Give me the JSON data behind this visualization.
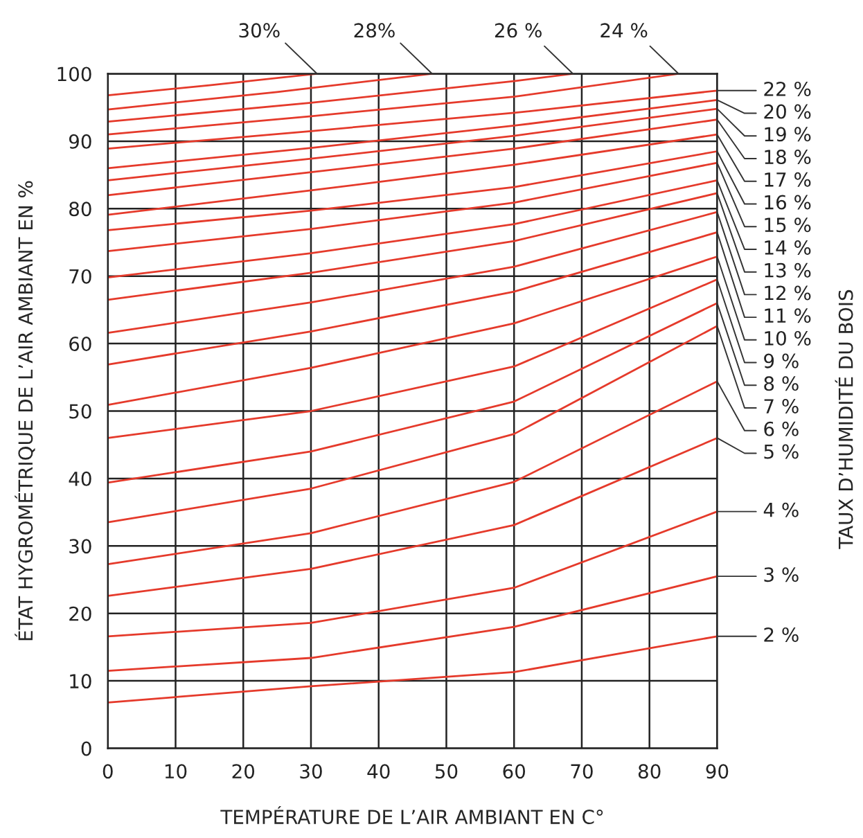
{
  "chart_data": {
    "type": "line",
    "xlabel": "TEMPÉRATURE DE L’AIR AMBIANT EN C°",
    "ylabel": "ÉTAT HYGROMÉTRIQUE DE L’AIR AMBIANT EN %",
    "annotations": [
      "TAUX D’HUMIDITÉ DU BOIS"
    ],
    "xlim": [
      0,
      90
    ],
    "ylim": [
      0,
      100
    ],
    "xticks": [
      0,
      10,
      20,
      30,
      40,
      50,
      60,
      70,
      80,
      90
    ],
    "yticks": [
      0,
      10,
      20,
      30,
      40,
      50,
      60,
      70,
      80,
      90,
      100
    ],
    "grid": true,
    "series": [
      {
        "name": "2 %",
        "color": "#e53a2b",
        "x": [
          0,
          30,
          60,
          90
        ],
        "values": [
          6.8,
          9.2,
          11.3,
          16.6
        ]
      },
      {
        "name": "3 %",
        "color": "#e53a2b",
        "x": [
          0,
          30,
          60,
          90
        ],
        "values": [
          11.5,
          13.4,
          18.0,
          25.5
        ]
      },
      {
        "name": "4 %",
        "color": "#e53a2b",
        "x": [
          0,
          30,
          60,
          90
        ],
        "values": [
          16.6,
          18.6,
          23.8,
          35.1
        ]
      },
      {
        "name": "5 %",
        "color": "#e53a2b",
        "x": [
          0,
          30,
          60,
          90
        ],
        "values": [
          22.6,
          26.6,
          33.1,
          46
        ]
      },
      {
        "name": "6 %",
        "color": "#e53a2b",
        "x": [
          0,
          30,
          60,
          90
        ],
        "values": [
          27.3,
          31.9,
          39.5,
          54.4
        ]
      },
      {
        "name": "7 %",
        "color": "#e53a2b",
        "x": [
          0,
          30,
          60,
          90
        ],
        "values": [
          33.5,
          38.5,
          46.6,
          62.6
        ]
      },
      {
        "name": "8 %",
        "color": "#e53a2b",
        "x": [
          0,
          30,
          60,
          90
        ],
        "values": [
          39.4,
          44.0,
          51.4,
          66
        ]
      },
      {
        "name": "9 %",
        "color": "#e53a2b",
        "x": [
          0,
          30,
          60,
          90
        ],
        "values": [
          46,
          50.0,
          56.6,
          69.5
        ]
      },
      {
        "name": "10 %",
        "color": "#e53a2b",
        "x": [
          0,
          30,
          60,
          90
        ],
        "values": [
          50.9,
          56.4,
          63.0,
          72.9
        ]
      },
      {
        "name": "11 %",
        "color": "#e53a2b",
        "x": [
          0,
          30,
          60,
          90
        ],
        "values": [
          56.9,
          61.8,
          67.7,
          76.5
        ]
      },
      {
        "name": "12 %",
        "color": "#e53a2b",
        "x": [
          0,
          30,
          60,
          90
        ],
        "values": [
          61.6,
          66.1,
          71.4,
          79.5
        ]
      },
      {
        "name": "13 %",
        "color": "#e53a2b",
        "x": [
          0,
          30,
          60,
          90
        ],
        "values": [
          66.5,
          70.5,
          75.2,
          82.3
        ]
      },
      {
        "name": "14 %",
        "color": "#e53a2b",
        "x": [
          0,
          30,
          60,
          90
        ],
        "values": [
          69.8,
          73.4,
          77.7,
          84.2
        ]
      },
      {
        "name": "15 %",
        "color": "#e53a2b",
        "x": [
          0,
          30,
          60,
          90
        ],
        "values": [
          73.7,
          77.0,
          80.9,
          86.8
        ]
      },
      {
        "name": "16 %",
        "color": "#e53a2b",
        "x": [
          0,
          30,
          60,
          90
        ],
        "values": [
          76.8,
          79.7,
          83.2,
          88.5
        ]
      },
      {
        "name": "17 %",
        "color": "#e53a2b",
        "x": [
          0,
          30,
          60,
          90
        ],
        "values": [
          79.1,
          82.7,
          86.5,
          91.0
        ]
      },
      {
        "name": "18 %",
        "color": "#e53a2b",
        "x": [
          0,
          30,
          60,
          90
        ],
        "values": [
          82,
          85.4,
          88.9,
          93.2
        ]
      },
      {
        "name": "19 %",
        "color": "#e53a2b",
        "x": [
          0,
          30,
          60,
          90
        ],
        "values": [
          84.2,
          87.4,
          90.8,
          94.8
        ]
      },
      {
        "name": "20 %",
        "color": "#e53a2b",
        "x": [
          0,
          30,
          60,
          90
        ],
        "values": [
          86,
          89.0,
          92.3,
          96.1
        ]
      },
      {
        "name": "22 %",
        "color": "#e53a2b",
        "x": [
          0,
          30,
          60,
          90
        ],
        "values": [
          88.9,
          91.5,
          94.2,
          97.5
        ]
      },
      {
        "name": "24 %",
        "color": "#e53a2b",
        "x": [
          0,
          30,
          60,
          84.3
        ],
        "values": [
          91,
          93.7,
          96.6,
          100
        ]
      },
      {
        "name": "26 %",
        "color": "#e53a2b",
        "x": [
          0,
          30,
          60,
          68.7
        ],
        "values": [
          92.9,
          95.7,
          98.9,
          100
        ]
      },
      {
        "name": "28%",
        "color": "#e53a2b",
        "x": [
          0,
          25,
          47.9
        ],
        "values": [
          94.7,
          97.3,
          100
        ]
      },
      {
        "name": "30%",
        "color": "#e53a2b",
        "x": [
          0,
          15,
          30.9
        ],
        "values": [
          96.8,
          98.3,
          100
        ]
      }
    ]
  }
}
